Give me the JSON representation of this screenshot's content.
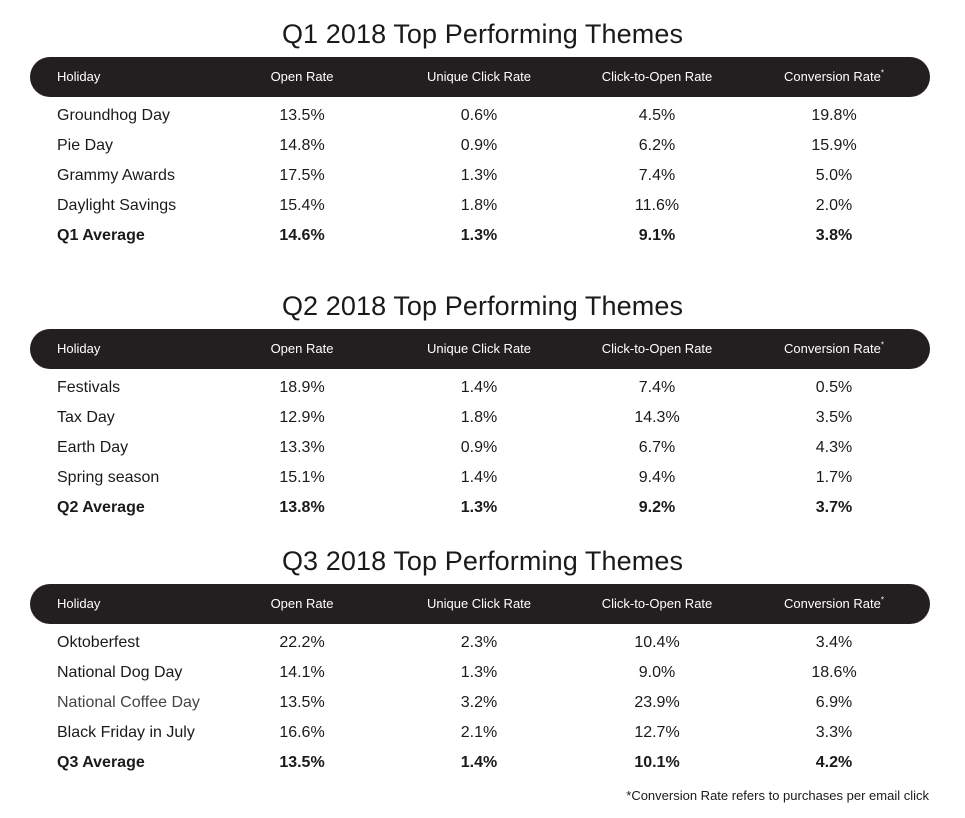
{
  "tables": [
    {
      "title": "Q1 2018 Top Performing Themes",
      "headers": {
        "holiday": "Holiday",
        "open_rate": "Open Rate",
        "unique_click_rate": "Unique Click Rate",
        "click_to_open_rate": "Click-to-Open Rate",
        "conversion_rate": "Conversion Rate",
        "conversion_mark": "*"
      },
      "rows": [
        {
          "holiday": "Groundhog Day",
          "open_rate": "13.5%",
          "unique_click_rate": "0.6%",
          "click_to_open_rate": "4.5%",
          "conversion_rate": "19.8%"
        },
        {
          "holiday": "Pie Day",
          "open_rate": "14.8%",
          "unique_click_rate": "0.9%",
          "click_to_open_rate": "6.2%",
          "conversion_rate": "15.9%"
        },
        {
          "holiday": "Grammy Awards",
          "open_rate": "17.5%",
          "unique_click_rate": "1.3%",
          "click_to_open_rate": "7.4%",
          "conversion_rate": "5.0%"
        },
        {
          "holiday": "Daylight Savings",
          "open_rate": "15.4%",
          "unique_click_rate": "1.8%",
          "click_to_open_rate": "11.6%",
          "conversion_rate": "2.0%"
        }
      ],
      "average": {
        "holiday": "Q1 Average",
        "open_rate": "14.6%",
        "unique_click_rate": "1.3%",
        "click_to_open_rate": "9.1%",
        "conversion_rate": "3.8%"
      }
    },
    {
      "title": "Q2 2018 Top Performing Themes",
      "headers": {
        "holiday": "Holiday",
        "open_rate": "Open Rate",
        "unique_click_rate": "Unique Click Rate",
        "click_to_open_rate": "Click-to-Open Rate",
        "conversion_rate": "Conversion Rate",
        "conversion_mark": "*"
      },
      "rows": [
        {
          "holiday": "Festivals",
          "open_rate": "18.9%",
          "unique_click_rate": "1.4%",
          "click_to_open_rate": "7.4%",
          "conversion_rate": "0.5%"
        },
        {
          "holiday": "Tax Day",
          "open_rate": "12.9%",
          "unique_click_rate": "1.8%",
          "click_to_open_rate": "14.3%",
          "conversion_rate": "3.5%"
        },
        {
          "holiday": "Earth Day",
          "open_rate": "13.3%",
          "unique_click_rate": "0.9%",
          "click_to_open_rate": "6.7%",
          "conversion_rate": "4.3%"
        },
        {
          "holiday": "Spring season",
          "open_rate": "15.1%",
          "unique_click_rate": "1.4%",
          "click_to_open_rate": "9.4%",
          "conversion_rate": "1.7%"
        }
      ],
      "average": {
        "holiday": "Q2 Average",
        "open_rate": "13.8%",
        "unique_click_rate": "1.3%",
        "click_to_open_rate": "9.2%",
        "conversion_rate": "3.7%"
      }
    },
    {
      "title": "Q3 2018 Top Performing Themes",
      "headers": {
        "holiday": "Holiday",
        "open_rate": "Open Rate",
        "unique_click_rate": "Unique Click Rate",
        "click_to_open_rate": "Click-to-Open Rate",
        "conversion_rate": "Conversion Rate",
        "conversion_mark": "*"
      },
      "rows": [
        {
          "holiday": "Oktoberfest",
          "open_rate": "22.2%",
          "unique_click_rate": "2.3%",
          "click_to_open_rate": "10.4%",
          "conversion_rate": "3.4%"
        },
        {
          "holiday": "National Dog Day",
          "open_rate": "14.1%",
          "unique_click_rate": "1.3%",
          "click_to_open_rate": "9.0%",
          "conversion_rate": "18.6%"
        },
        {
          "holiday": "National Coffee Day",
          "open_rate": "13.5%",
          "unique_click_rate": "3.2%",
          "click_to_open_rate": "23.9%",
          "conversion_rate": "6.9%"
        },
        {
          "holiday": "Black Friday in July",
          "open_rate": "16.6%",
          "unique_click_rate": "2.1%",
          "click_to_open_rate": "12.7%",
          "conversion_rate": "3.3%"
        }
      ],
      "average": {
        "holiday": "Q3 Average",
        "open_rate": "13.5%",
        "unique_click_rate": "1.4%",
        "click_to_open_rate": "10.1%",
        "conversion_rate": "4.2%"
      }
    }
  ],
  "footnote": {
    "mark": "*",
    "text": "Conversion Rate refers to purchases per email click"
  },
  "colors": {
    "header_bar": "#231f20",
    "header_text": "#ffffff",
    "body_text": "#1a1a1a"
  }
}
